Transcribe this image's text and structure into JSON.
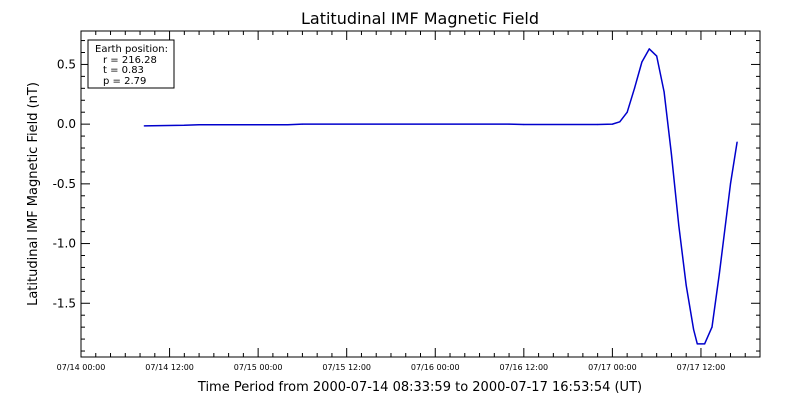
{
  "chart_data": {
    "type": "line",
    "title": "Latitudinal IMF Magnetic Field",
    "xlabel": "Time Period from 2000-07-14 08:33:59 to 2000-07-17 16:53:54 (UT)",
    "ylabel": "Latitudinal IMF Magnetic Field (nT)",
    "xlim": [
      "2000-07-14T00:00",
      "2000-07-17T20:00"
    ],
    "ylim": [
      -1.95,
      0.78
    ],
    "xticks": [
      {
        "value": "2000-07-14T00:00",
        "label": "07/14 00:00"
      },
      {
        "value": "2000-07-14T12:00",
        "label": "07/14 12:00"
      },
      {
        "value": "2000-07-15T00:00",
        "label": "07/15 00:00"
      },
      {
        "value": "2000-07-15T12:00",
        "label": "07/15 12:00"
      },
      {
        "value": "2000-07-16T00:00",
        "label": "07/16 00:00"
      },
      {
        "value": "2000-07-16T12:00",
        "label": "07/16 12:00"
      },
      {
        "value": "2000-07-17T00:00",
        "label": "07/17 00:00"
      },
      {
        "value": "2000-07-17T12:00",
        "label": "07/17 12:00"
      }
    ],
    "yticks": [
      {
        "value": 0.5,
        "label": "0.5"
      },
      {
        "value": 0.0,
        "label": "0.0"
      },
      {
        "value": -0.5,
        "label": "-0.5"
      },
      {
        "value": -1.0,
        "label": "-1.0"
      },
      {
        "value": -1.5,
        "label": "-1.5"
      }
    ],
    "grid": false,
    "annotation": {
      "heading": "Earth position:",
      "lines": [
        "r = 216.28",
        "t = 0.83",
        "p = 2.79"
      ]
    },
    "series": [
      {
        "color": "#0000cc",
        "points": [
          [
            "2000-07-14T08:34",
            -0.015
          ],
          [
            "2000-07-14T14:00",
            -0.01
          ],
          [
            "2000-07-14T16:00",
            -0.005
          ],
          [
            "2000-07-15T04:00",
            -0.005
          ],
          [
            "2000-07-15T06:00",
            0.0
          ],
          [
            "2000-07-16T10:00",
            0.0
          ],
          [
            "2000-07-16T12:00",
            -0.003
          ],
          [
            "2000-07-16T22:00",
            -0.003
          ],
          [
            "2000-07-17T00:00",
            0.0
          ],
          [
            "2000-07-17T01:00",
            0.02
          ],
          [
            "2000-07-17T02:00",
            0.1
          ],
          [
            "2000-07-17T03:00",
            0.3
          ],
          [
            "2000-07-17T04:00",
            0.52
          ],
          [
            "2000-07-17T05:00",
            0.63
          ],
          [
            "2000-07-17T06:00",
            0.57
          ],
          [
            "2000-07-17T07:00",
            0.27
          ],
          [
            "2000-07-17T08:00",
            -0.25
          ],
          [
            "2000-07-17T09:00",
            -0.85
          ],
          [
            "2000-07-17T10:00",
            -1.35
          ],
          [
            "2000-07-17T11:00",
            -1.72
          ],
          [
            "2000-07-17T11:30",
            -1.84
          ],
          [
            "2000-07-17T12:30",
            -1.84
          ],
          [
            "2000-07-17T13:30",
            -1.7
          ],
          [
            "2000-07-17T14:30",
            -1.25
          ],
          [
            "2000-07-17T15:30",
            -0.75
          ],
          [
            "2000-07-17T16:00",
            -0.5
          ],
          [
            "2000-07-17T16:54",
            -0.15
          ]
        ]
      }
    ]
  }
}
